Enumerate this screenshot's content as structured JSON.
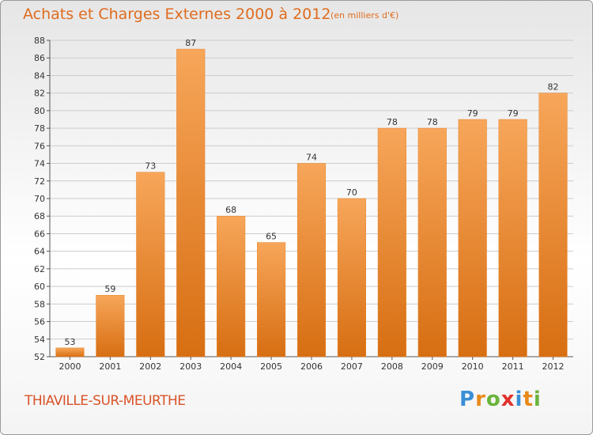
{
  "header": {
    "title": "Achats et Charges Externes 2000 à 2012",
    "unit": "(en milliers d'€)"
  },
  "footer": {
    "commune": "THIAVILLE-SUR-MEURTHE",
    "logo": [
      "P",
      "r",
      "o",
      "x",
      "i",
      "t",
      "i"
    ]
  },
  "colors": {
    "bar_top": "#f7a65a",
    "bar_bottom": "#d76e12",
    "grid": "#cccccc",
    "title": "#e06c1e"
  },
  "chart_data": {
    "type": "bar",
    "title": "Achats et Charges Externes 2000 à 2012",
    "subtitle": "(en milliers d'€)",
    "categories": [
      "2000",
      "2001",
      "2002",
      "2003",
      "2004",
      "2005",
      "2006",
      "2007",
      "2008",
      "2009",
      "2010",
      "2011",
      "2012"
    ],
    "values": [
      53,
      59,
      73,
      87,
      68,
      65,
      74,
      70,
      78,
      78,
      79,
      79,
      82
    ],
    "ylim": [
      52,
      88
    ],
    "yticks": [
      52,
      54,
      56,
      58,
      60,
      62,
      64,
      66,
      68,
      70,
      72,
      74,
      76,
      78,
      80,
      82,
      84,
      86,
      88
    ],
    "grid": true,
    "data_labels": true
  }
}
